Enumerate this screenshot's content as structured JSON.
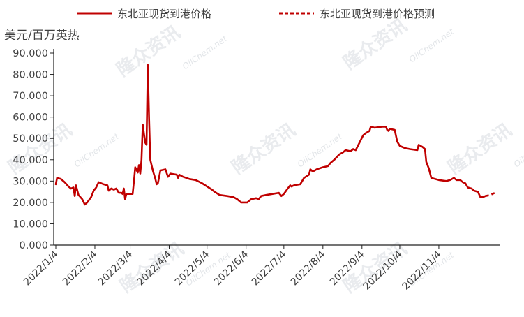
{
  "chart_data": {
    "type": "line",
    "unit_label": "美元/百万英热",
    "legend_position": "top",
    "grid": false,
    "ylim": [
      0,
      90
    ],
    "y_ticks": [
      "0.000",
      "10.000",
      "20.000",
      "30.000",
      "40.000",
      "50.000",
      "60.000",
      "70.000",
      "80.000",
      "90.000"
    ],
    "x_range": [
      "2022-01-04",
      "2022-12-20"
    ],
    "x_ticks": [
      {
        "date": "2022-01-04",
        "label": "2022/1/4"
      },
      {
        "date": "2022-02-04",
        "label": "2022/2/4"
      },
      {
        "date": "2022-03-04",
        "label": "2022/3/4"
      },
      {
        "date": "2022-04-04",
        "label": "2022/4/4"
      },
      {
        "date": "2022-05-04",
        "label": "2022/5/4"
      },
      {
        "date": "2022-06-04",
        "label": "2022/6/4"
      },
      {
        "date": "2022-07-04",
        "label": "2022/7/4"
      },
      {
        "date": "2022-08-04",
        "label": "2022/8/4"
      },
      {
        "date": "2022-09-04",
        "label": "2022/9/4"
      },
      {
        "date": "2022-10-04",
        "label": "2022/10/4"
      },
      {
        "date": "2022-11-04",
        "label": "2022/11/4"
      }
    ],
    "series": [
      {
        "name": "东北亚现货到港价格",
        "color": "#c00000",
        "style": "solid",
        "points": [
          [
            "2022-01-04",
            28.5
          ],
          [
            "2022-01-05",
            31.5
          ],
          [
            "2022-01-08",
            31.0
          ],
          [
            "2022-01-11",
            29.5
          ],
          [
            "2022-01-14",
            27.5
          ],
          [
            "2022-01-16",
            26.5
          ],
          [
            "2022-01-18",
            27.0
          ],
          [
            "2022-01-19",
            23.0
          ],
          [
            "2022-01-20",
            28.0
          ],
          [
            "2022-01-22",
            23.5
          ],
          [
            "2022-01-25",
            21.5
          ],
          [
            "2022-01-27",
            19.0
          ],
          [
            "2022-01-29",
            20.0
          ],
          [
            "2022-02-01",
            22.5
          ],
          [
            "2022-02-03",
            25.5
          ],
          [
            "2022-02-05",
            27.0
          ],
          [
            "2022-02-07",
            29.5
          ],
          [
            "2022-02-11",
            28.5
          ],
          [
            "2022-02-14",
            28.0
          ],
          [
            "2022-02-15",
            25.5
          ],
          [
            "2022-02-17",
            26.5
          ],
          [
            "2022-02-19",
            26.0
          ],
          [
            "2022-02-21",
            26.5
          ],
          [
            "2022-02-23",
            24.5
          ],
          [
            "2022-02-25",
            24.5
          ],
          [
            "2022-02-26",
            24.0
          ],
          [
            "2022-02-27",
            26.5
          ],
          [
            "2022-02-28",
            21.5
          ],
          [
            "2022-03-01",
            24.0
          ],
          [
            "2022-03-03",
            24.0
          ],
          [
            "2022-03-06",
            24.0
          ],
          [
            "2022-03-07",
            30.0
          ],
          [
            "2022-03-08",
            36.5
          ],
          [
            "2022-03-10",
            34.0
          ],
          [
            "2022-03-11",
            37.5
          ],
          [
            "2022-03-12",
            33.5
          ],
          [
            "2022-03-13",
            40.0
          ],
          [
            "2022-03-14",
            56.5
          ],
          [
            "2022-03-15",
            52.0
          ],
          [
            "2022-03-16",
            48.0
          ],
          [
            "2022-03-17",
            47.0
          ],
          [
            "2022-03-18",
            84.5
          ],
          [
            "2022-03-19",
            60.0
          ],
          [
            "2022-03-20",
            40.0
          ],
          [
            "2022-03-22",
            35.0
          ],
          [
            "2022-03-24",
            31.0
          ],
          [
            "2022-03-25",
            28.5
          ],
          [
            "2022-03-26",
            29.0
          ],
          [
            "2022-03-28",
            35.0
          ],
          [
            "2022-04-01",
            35.5
          ],
          [
            "2022-04-03",
            32.0
          ],
          [
            "2022-04-05",
            33.5
          ],
          [
            "2022-04-10",
            33.0
          ],
          [
            "2022-04-11",
            31.5
          ],
          [
            "2022-04-12",
            33.0
          ],
          [
            "2022-04-15",
            32.0
          ],
          [
            "2022-04-20",
            31.0
          ],
          [
            "2022-04-25",
            30.5
          ],
          [
            "2022-04-30",
            29.0
          ],
          [
            "2022-05-04",
            27.5
          ],
          [
            "2022-05-08",
            26.0
          ],
          [
            "2022-05-10",
            25.0
          ],
          [
            "2022-05-14",
            23.5
          ],
          [
            "2022-05-20",
            23.0
          ],
          [
            "2022-05-25",
            22.5
          ],
          [
            "2022-05-28",
            21.5
          ],
          [
            "2022-05-31",
            20.0
          ],
          [
            "2022-06-05",
            20.0
          ],
          [
            "2022-06-08",
            21.5
          ],
          [
            "2022-06-12",
            22.0
          ],
          [
            "2022-06-14",
            21.5
          ],
          [
            "2022-06-16",
            23.0
          ],
          [
            "2022-06-20",
            23.5
          ],
          [
            "2022-06-25",
            24.0
          ],
          [
            "2022-06-30",
            24.5
          ],
          [
            "2022-07-02",
            23.0
          ],
          [
            "2022-07-04",
            24.0
          ],
          [
            "2022-07-07",
            26.5
          ],
          [
            "2022-07-09",
            28.0
          ],
          [
            "2022-07-10",
            27.5
          ],
          [
            "2022-07-12",
            28.0
          ],
          [
            "2022-07-17",
            28.5
          ],
          [
            "2022-07-20",
            31.5
          ],
          [
            "2022-07-24",
            33.0
          ],
          [
            "2022-07-25",
            35.5
          ],
          [
            "2022-07-27",
            34.5
          ],
          [
            "2022-07-30",
            35.5
          ],
          [
            "2022-08-04",
            36.5
          ],
          [
            "2022-08-08",
            37.0
          ],
          [
            "2022-08-10",
            38.5
          ],
          [
            "2022-08-13",
            40.0
          ],
          [
            "2022-08-17",
            42.5
          ],
          [
            "2022-08-20",
            43.5
          ],
          [
            "2022-08-22",
            44.5
          ],
          [
            "2022-08-26",
            44.0
          ],
          [
            "2022-08-28",
            45.0
          ],
          [
            "2022-08-30",
            44.5
          ],
          [
            "2022-09-02",
            48.0
          ],
          [
            "2022-09-05",
            51.5
          ],
          [
            "2022-09-07",
            52.5
          ],
          [
            "2022-09-10",
            53.5
          ],
          [
            "2022-09-11",
            55.5
          ],
          [
            "2022-09-14",
            55.0
          ],
          [
            "2022-09-20",
            55.5
          ],
          [
            "2022-09-23",
            55.5
          ],
          [
            "2022-09-24",
            54.0
          ],
          [
            "2022-09-25",
            53.5
          ],
          [
            "2022-09-26",
            54.5
          ],
          [
            "2022-09-30",
            54.0
          ],
          [
            "2022-10-02",
            48.5
          ],
          [
            "2022-10-04",
            46.5
          ],
          [
            "2022-10-08",
            45.5
          ],
          [
            "2022-10-12",
            45.0
          ],
          [
            "2022-10-18",
            44.5
          ],
          [
            "2022-10-19",
            47.0
          ],
          [
            "2022-10-22",
            46.0
          ],
          [
            "2022-10-24",
            45.0
          ],
          [
            "2022-10-25",
            39.0
          ],
          [
            "2022-10-27",
            36.0
          ],
          [
            "2022-10-29",
            31.5
          ],
          [
            "2022-11-04",
            30.5
          ],
          [
            "2022-11-10",
            30.0
          ],
          [
            "2022-11-13",
            30.5
          ],
          [
            "2022-11-16",
            31.5
          ],
          [
            "2022-11-18",
            30.5
          ],
          [
            "2022-11-21",
            30.5
          ],
          [
            "2022-11-23",
            29.5
          ],
          [
            "2022-11-25",
            29.0
          ],
          [
            "2022-11-27",
            27.0
          ],
          [
            "2022-11-30",
            26.5
          ],
          [
            "2022-12-02",
            25.5
          ],
          [
            "2022-12-05",
            25.0
          ],
          [
            "2022-12-07",
            22.5
          ],
          [
            "2022-12-09",
            22.5
          ],
          [
            "2022-12-11",
            23.0
          ]
        ]
      },
      {
        "name": "东北亚现货到港价格预测",
        "color": "#c00000",
        "style": "dashed",
        "points": [
          [
            "2022-12-11",
            23.0
          ],
          [
            "2022-12-15",
            23.5
          ],
          [
            "2022-12-20",
            25.0
          ]
        ]
      }
    ]
  },
  "watermarks": [
    "隆众资讯",
    "OilChem.net"
  ]
}
